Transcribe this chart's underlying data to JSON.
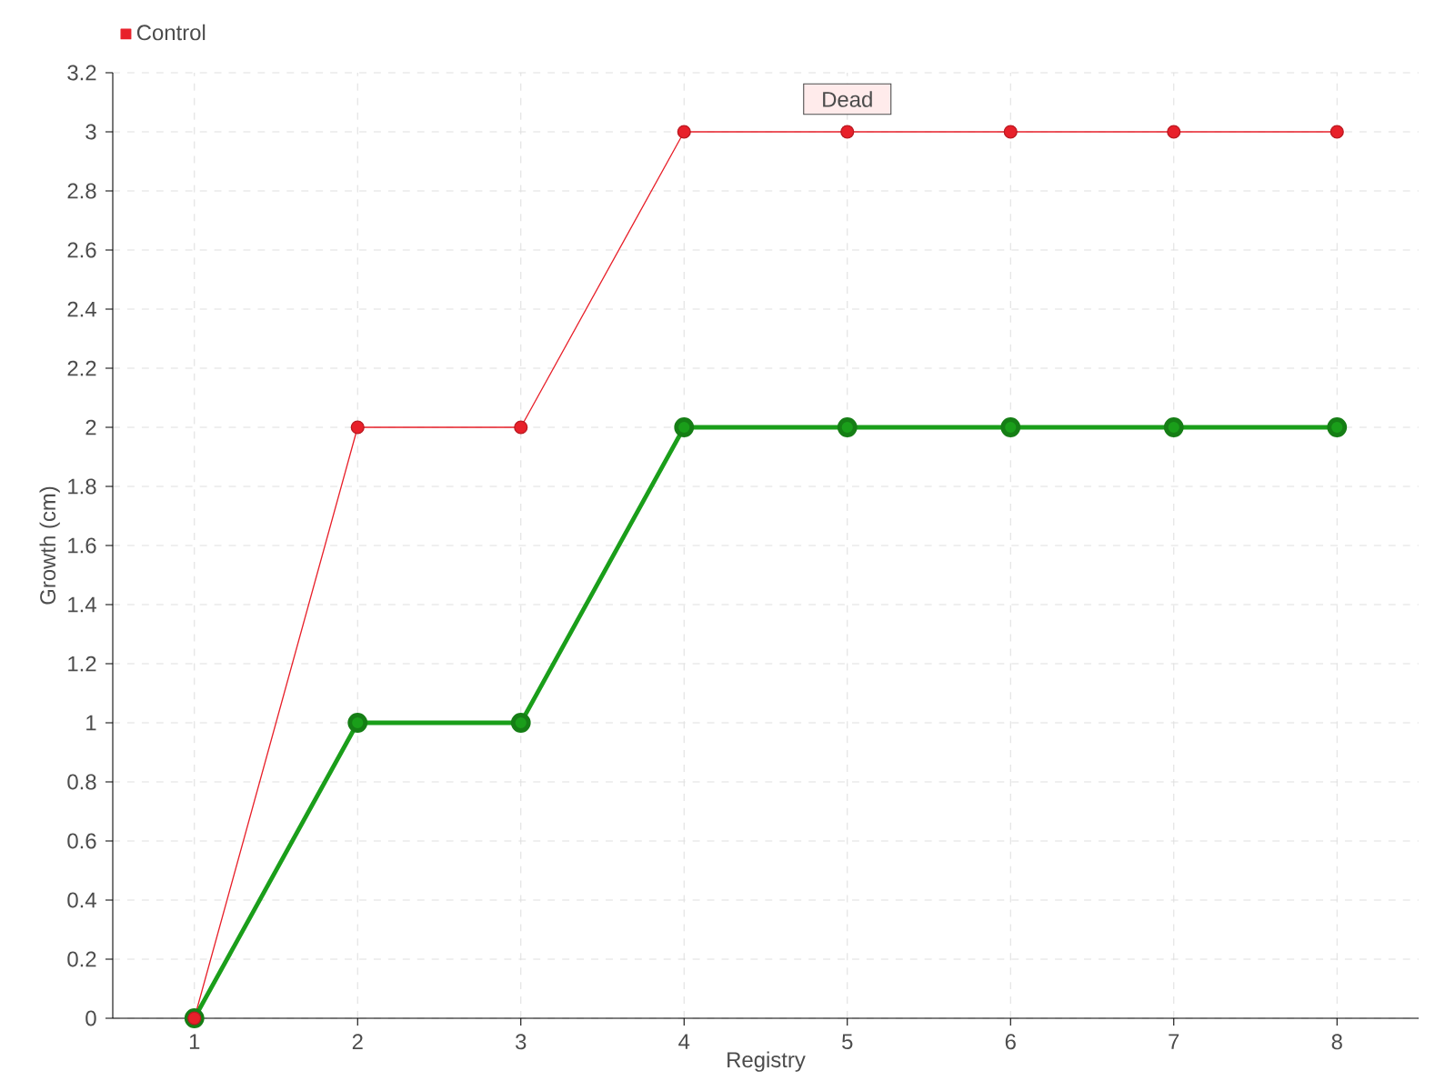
{
  "chart_data": {
    "type": "line",
    "xlabel": "Registry",
    "ylabel": "Growth (cm)",
    "x": [
      1,
      2,
      3,
      4,
      5,
      6,
      7,
      8
    ],
    "xlim": [
      0.5,
      8.5
    ],
    "xticks": [
      1,
      2,
      3,
      4,
      5,
      6,
      7,
      8
    ],
    "ylim": [
      0,
      3.2
    ],
    "yticks": [
      0,
      0.2,
      0.4,
      0.6,
      0.8,
      1,
      1.2,
      1.4,
      1.6,
      1.8,
      2,
      2.2,
      2.4,
      2.6,
      2.8,
      3,
      3.2
    ],
    "series": [
      {
        "color": "#1a9e1a",
        "values": [
          0,
          1,
          1,
          2,
          2,
          2,
          2,
          2
        ]
      },
      {
        "name": "Control",
        "color": "#e8202a",
        "values": [
          0,
          2,
          2,
          3,
          3,
          3,
          3,
          3
        ]
      }
    ],
    "annotations": [
      {
        "text": "Dead",
        "x": 5,
        "y": 3
      }
    ],
    "grid": true,
    "legend": "top left",
    "marker": "circle",
    "line_style": "solid"
  }
}
